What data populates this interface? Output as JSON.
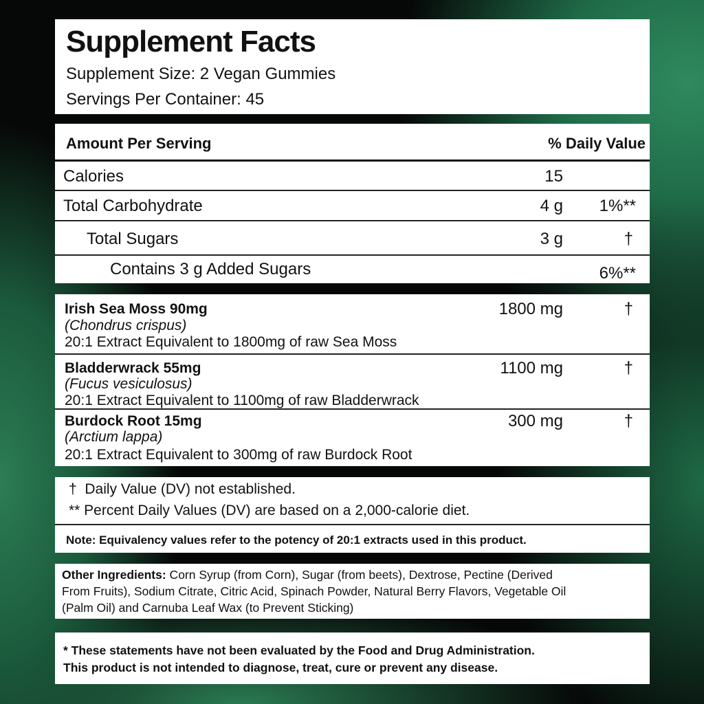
{
  "title": "Supplement Facts",
  "serving_size": "Supplement Size: 2 Vegan Gummies",
  "servings_per_container": "Servings Per Container: 45",
  "header": {
    "amount": "Amount Per Serving",
    "dv": "% Daily Value"
  },
  "nutrients": [
    {
      "name": "Calories",
      "amount": "15",
      "dv": ""
    },
    {
      "name": "Total Carbohydrate",
      "amount": "4 g",
      "dv": "1%**"
    },
    {
      "name": "Total Sugars",
      "amount": "3 g",
      "dv": "†"
    },
    {
      "name": "Contains 3 g Added Sugars",
      "amount": "",
      "dv": "6%**"
    }
  ],
  "ingredients": [
    {
      "name": "Irish Sea Moss 90mg",
      "latin": "(Chondrus crispus)",
      "extract": "20:1 Extract Equivalent to 1800mg of raw Sea Moss",
      "amount": "1800 mg",
      "dv": "†"
    },
    {
      "name": "Bladderwrack 55mg",
      "latin": "(Fucus vesiculosus)",
      "extract": "20:1 Extract Equivalent to 1100mg of raw Bladderwrack",
      "amount": "1100 mg",
      "dv": "†"
    },
    {
      "name": "Burdock Root 15mg",
      "latin": "(Arctium lappa)",
      "extract": "20:1 Extract Equivalent to 300mg of raw Burdock Root",
      "amount": "300 mg",
      "dv": "†"
    }
  ],
  "footnotes": [
    "†  Daily Value (DV) not established.",
    "** Percent Daily Values (DV) are based on a 2,000-calorie diet."
  ],
  "note": "Note: Equivalency values refer to the potency of 20:1 extracts used in this product.",
  "other_ingredients": {
    "label": "Other Ingredients:",
    "lines": [
      " Corn Syrup (from Corn), Sugar (from beets), Dextrose, Pectine (Derived",
      "From Fruits), Sodium Citrate, Citric Acid, Spinach Powder, Natural Berry Flavors, Vegetable Oil",
      "(Palm Oil) and Carnuba Leaf Wax (to Prevent Sticking)"
    ]
  },
  "disclaimer": [
    "* These statements have not been evaluated by the Food and Drug Administration.",
    "This product is not intended to diagnose, treat, cure or prevent any disease."
  ]
}
